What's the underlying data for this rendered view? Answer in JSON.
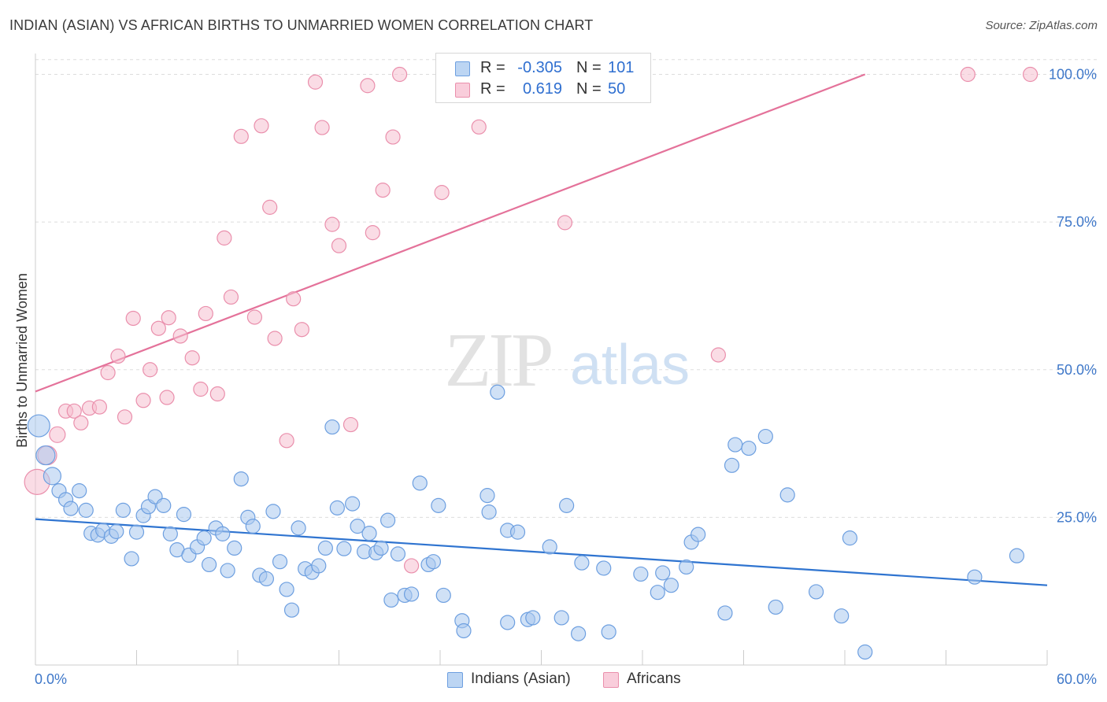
{
  "header": {
    "title": "INDIAN (ASIAN) VS AFRICAN BIRTHS TO UNMARRIED WOMEN CORRELATION CHART",
    "source": "Source: ZipAtlas.com"
  },
  "watermark": {
    "zip": "ZIP",
    "atlas": "atlas"
  },
  "legend": {
    "rows": [
      {
        "r_label": "R =",
        "r_value": "-0.305",
        "n_label": "N =",
        "n_value": "101"
      },
      {
        "r_label": "R =",
        "r_value": "0.619",
        "n_label": "N =",
        "n_value": "50"
      }
    ]
  },
  "bottom_legend": [
    {
      "label": "Indians (Asian)"
    },
    {
      "label": "Africans"
    }
  ],
  "colors": {
    "blue_fill": "#a9c8ee",
    "blue_stroke": "#6d9fe0",
    "blue_line": "#2f74d0",
    "pink_fill": "#f6bfd0",
    "pink_stroke": "#ea8fac",
    "pink_line": "#e4729a",
    "axis_text": "#3f78c9",
    "grid": "#dddddd"
  },
  "chart_data": {
    "type": "scatter",
    "title": "INDIAN (ASIAN) VS AFRICAN BIRTHS TO UNMARRIED WOMEN CORRELATION CHART",
    "xlabel": "",
    "ylabel": "Births to Unmarried Women",
    "xlim": [
      0,
      60
    ],
    "ylim": [
      0,
      103
    ],
    "x_tick_labels": [
      "0.0%",
      "60.0%"
    ],
    "y_ticks": [
      25,
      50,
      75,
      100
    ],
    "y_tick_labels": [
      "25.0%",
      "50.0%",
      "75.0%",
      "100.0%"
    ],
    "grid": true,
    "legend_position": "top-center",
    "series": [
      {
        "name": "Indians (Asian)",
        "r": -0.305,
        "n": 101,
        "trend": {
          "x0": 0,
          "y0": 24.7,
          "x1": 60,
          "y1": 13.5
        },
        "points": [
          [
            0.2,
            40.5,
            14
          ],
          [
            0.6,
            35.5,
            12
          ],
          [
            1.0,
            32.0,
            11
          ],
          [
            1.4,
            29.5,
            9
          ],
          [
            1.8,
            28.0,
            9
          ],
          [
            2.1,
            26.5,
            9
          ],
          [
            2.6,
            29.5,
            9
          ],
          [
            3.0,
            26.2,
            9
          ],
          [
            3.3,
            22.3,
            9
          ],
          [
            3.7,
            22.0,
            9
          ],
          [
            4.0,
            22.8,
            9
          ],
          [
            4.5,
            21.8,
            9
          ],
          [
            4.8,
            22.6,
            9
          ],
          [
            5.2,
            26.2,
            9
          ],
          [
            5.7,
            18.0,
            9
          ],
          [
            6.0,
            22.5,
            9
          ],
          [
            6.4,
            25.3,
            9
          ],
          [
            6.7,
            26.8,
            9
          ],
          [
            7.1,
            28.5,
            9
          ],
          [
            7.6,
            27.0,
            9
          ],
          [
            8.0,
            22.2,
            9
          ],
          [
            8.4,
            19.5,
            9
          ],
          [
            8.8,
            25.5,
            9
          ],
          [
            9.1,
            18.6,
            9
          ],
          [
            9.6,
            20.0,
            9
          ],
          [
            10.0,
            21.5,
            9
          ],
          [
            10.3,
            17.0,
            9
          ],
          [
            10.7,
            23.2,
            9
          ],
          [
            11.1,
            22.2,
            9
          ],
          [
            11.4,
            16.0,
            9
          ],
          [
            11.8,
            19.8,
            9
          ],
          [
            12.2,
            31.5,
            9
          ],
          [
            12.6,
            25.0,
            9
          ],
          [
            12.9,
            23.5,
            9
          ],
          [
            13.3,
            15.2,
            9
          ],
          [
            13.7,
            14.6,
            9
          ],
          [
            14.1,
            26.0,
            9
          ],
          [
            14.5,
            17.5,
            9
          ],
          [
            14.9,
            12.8,
            9
          ],
          [
            15.2,
            9.3,
            9
          ],
          [
            15.6,
            23.2,
            9
          ],
          [
            16.0,
            16.3,
            9
          ],
          [
            16.4,
            15.7,
            9
          ],
          [
            16.8,
            16.8,
            9
          ],
          [
            17.2,
            19.8,
            9
          ],
          [
            17.6,
            40.3,
            9
          ],
          [
            17.9,
            26.6,
            9
          ],
          [
            18.3,
            19.7,
            9
          ],
          [
            18.8,
            27.3,
            9
          ],
          [
            19.1,
            23.5,
            9
          ],
          [
            19.5,
            19.2,
            9
          ],
          [
            19.8,
            22.3,
            9
          ],
          [
            20.2,
            19.0,
            9
          ],
          [
            20.5,
            19.8,
            9
          ],
          [
            20.9,
            24.5,
            9
          ],
          [
            21.1,
            11.0,
            9
          ],
          [
            21.5,
            18.8,
            9
          ],
          [
            21.9,
            11.8,
            9
          ],
          [
            22.3,
            12.0,
            9
          ],
          [
            22.8,
            30.8,
            9
          ],
          [
            23.3,
            17.0,
            9
          ],
          [
            23.6,
            17.5,
            9
          ],
          [
            23.9,
            27.0,
            9
          ],
          [
            24.2,
            11.8,
            9
          ],
          [
            25.3,
            7.5,
            9
          ],
          [
            25.4,
            5.8,
            9
          ],
          [
            26.8,
            28.7,
            9
          ],
          [
            26.9,
            25.9,
            9
          ],
          [
            27.4,
            46.2,
            9
          ],
          [
            28.0,
            22.8,
            9
          ],
          [
            28.0,
            7.2,
            9
          ],
          [
            28.6,
            22.5,
            9
          ],
          [
            29.2,
            7.7,
            9
          ],
          [
            29.5,
            8.0,
            9
          ],
          [
            30.5,
            20.0,
            9
          ],
          [
            31.2,
            8.0,
            9
          ],
          [
            31.5,
            27.0,
            9
          ],
          [
            32.2,
            5.3,
            9
          ],
          [
            32.4,
            17.3,
            9
          ],
          [
            33.7,
            16.4,
            9
          ],
          [
            34.0,
            5.6,
            9
          ],
          [
            35.9,
            15.4,
            9
          ],
          [
            36.9,
            12.3,
            9
          ],
          [
            37.2,
            15.6,
            9
          ],
          [
            37.7,
            13.5,
            9
          ],
          [
            38.6,
            16.6,
            9
          ],
          [
            38.9,
            20.8,
            9
          ],
          [
            39.3,
            22.1,
            9
          ],
          [
            40.9,
            8.8,
            9
          ],
          [
            41.3,
            33.8,
            9
          ],
          [
            41.5,
            37.3,
            9
          ],
          [
            42.3,
            36.7,
            9
          ],
          [
            43.3,
            38.7,
            9
          ],
          [
            43.9,
            9.8,
            9
          ],
          [
            44.6,
            28.8,
            9
          ],
          [
            46.3,
            12.4,
            9
          ],
          [
            47.8,
            8.3,
            9
          ],
          [
            48.3,
            21.5,
            9
          ],
          [
            49.2,
            2.2,
            9
          ],
          [
            55.7,
            14.9,
            9
          ],
          [
            58.2,
            18.5,
            9
          ]
        ]
      },
      {
        "name": "Africans",
        "r": 0.619,
        "n": 50,
        "trend": {
          "x0": 0,
          "y0": 46.3,
          "x1": 49.2,
          "y1": 100.0
        },
        "points": [
          [
            0.1,
            31.0,
            16
          ],
          [
            0.7,
            35.5,
            12
          ],
          [
            1.3,
            39.0,
            10
          ],
          [
            1.8,
            43.0,
            9
          ],
          [
            2.3,
            43.0,
            9
          ],
          [
            2.7,
            41.0,
            9
          ],
          [
            3.2,
            43.5,
            9
          ],
          [
            3.8,
            43.7,
            9
          ],
          [
            4.3,
            49.5,
            9
          ],
          [
            4.9,
            52.3,
            9
          ],
          [
            5.3,
            42.0,
            9
          ],
          [
            5.8,
            58.7,
            9
          ],
          [
            6.4,
            44.8,
            9
          ],
          [
            6.8,
            50.0,
            9
          ],
          [
            7.3,
            57.0,
            9
          ],
          [
            7.8,
            45.3,
            9
          ],
          [
            7.9,
            58.8,
            9
          ],
          [
            8.6,
            55.7,
            9
          ],
          [
            9.3,
            52.0,
            9
          ],
          [
            9.8,
            46.7,
            9
          ],
          [
            10.1,
            59.5,
            9
          ],
          [
            10.8,
            45.9,
            9
          ],
          [
            11.2,
            72.3,
            9
          ],
          [
            11.6,
            62.3,
            9
          ],
          [
            12.2,
            89.5,
            9
          ],
          [
            13.0,
            58.9,
            9
          ],
          [
            13.4,
            91.3,
            9
          ],
          [
            13.9,
            77.5,
            9
          ],
          [
            14.2,
            55.3,
            9
          ],
          [
            14.9,
            38.0,
            9
          ],
          [
            15.3,
            62.0,
            9
          ],
          [
            15.8,
            56.8,
            9
          ],
          [
            16.6,
            98.7,
            9
          ],
          [
            17.0,
            91.0,
            9
          ],
          [
            17.6,
            74.6,
            9
          ],
          [
            18.0,
            71.0,
            9
          ],
          [
            18.7,
            40.7,
            9
          ],
          [
            19.7,
            98.1,
            9
          ],
          [
            20.0,
            73.2,
            9
          ],
          [
            20.6,
            80.4,
            9
          ],
          [
            21.2,
            89.4,
            9
          ],
          [
            21.6,
            100.0,
            9
          ],
          [
            22.3,
            16.8,
            9
          ],
          [
            24.1,
            80.0,
            9
          ],
          [
            26.3,
            91.1,
            9
          ],
          [
            31.4,
            74.9,
            9
          ],
          [
            35.7,
            100.0,
            9
          ],
          [
            40.5,
            52.5,
            9
          ],
          [
            55.3,
            100.0,
            9
          ],
          [
            59.0,
            100.0,
            9
          ]
        ]
      }
    ]
  }
}
